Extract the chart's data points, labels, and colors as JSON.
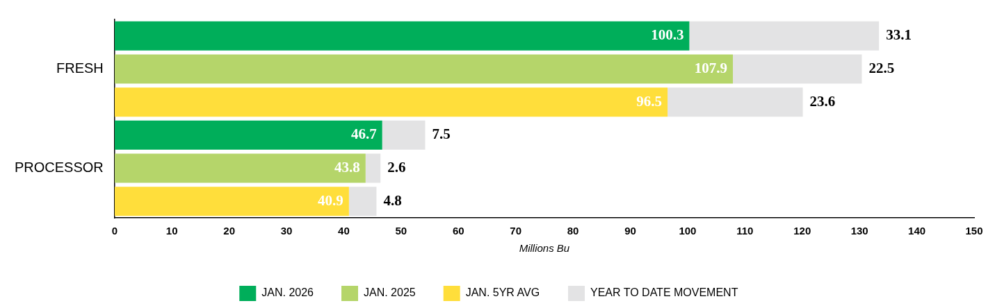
{
  "chart_data": {
    "type": "bar",
    "orientation": "horizontal",
    "stacked": true,
    "xlabel": "Millions Bu",
    "categories": [
      null,
      "FRESH",
      null,
      null,
      "PROCESSOR",
      null
    ],
    "series": [
      {
        "name": "JAN. 2026",
        "color": "#00ae5a",
        "values": [
          100.3,
          null,
          null,
          46.7,
          null,
          null
        ]
      },
      {
        "name": "JAN. 2025",
        "color": "#b5d56a",
        "values": [
          null,
          107.9,
          null,
          null,
          43.8,
          null
        ]
      },
      {
        "name": "JAN. 5YR AVG",
        "color": "#ffde3b",
        "values": [
          null,
          null,
          96.5,
          null,
          null,
          40.9
        ]
      },
      {
        "name": "YEAR TO DATE MOVEMENT",
        "color": "#e3e3e4",
        "values": [
          33.1,
          22.5,
          23.6,
          7.5,
          2.6,
          4.8
        ]
      }
    ],
    "xlim": [
      0,
      150
    ],
    "xticks": [
      0,
      10,
      20,
      30,
      40,
      50,
      60,
      70,
      80,
      90,
      100,
      110,
      120,
      130,
      140,
      150
    ],
    "grid": false,
    "legend": "bottom",
    "data_labels": true
  }
}
